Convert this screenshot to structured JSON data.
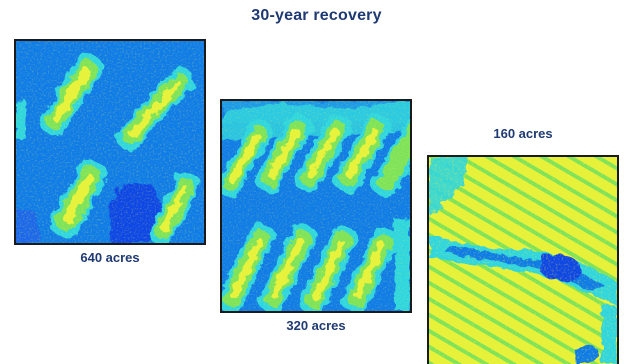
{
  "title": "30-year recovery",
  "panels": [
    {
      "id": "a",
      "caption": "640 acres"
    },
    {
      "id": "b",
      "caption": "320 acres"
    },
    {
      "id": "c",
      "caption": "160 acres"
    }
  ],
  "colors": {
    "text": "#1f3a73",
    "water_blue": "#0f7ce8",
    "deep_blue": "#0a47e6",
    "cyan": "#2fd6e0",
    "green": "#7ee35a",
    "yellow": "#e6f23a",
    "border": "#1a1a1a"
  }
}
